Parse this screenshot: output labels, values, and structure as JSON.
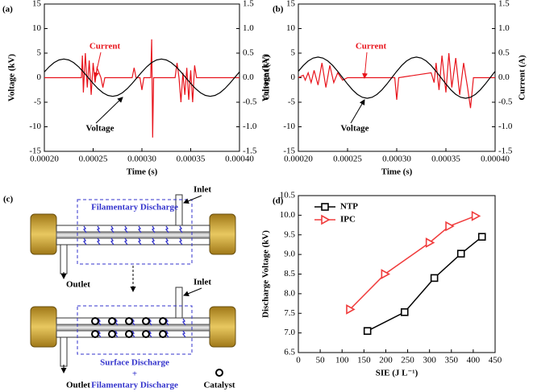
{
  "chart_data": [
    {
      "type": "line",
      "panel": "(a)",
      "xlabel": "Time (s)",
      "ylabel": "Voltage (kV)",
      "y2label": "Current (A)",
      "xlim": [
        0.0002,
        0.0004
      ],
      "xticks": [
        {
          "value": 0.0002,
          "label": "0.00020"
        },
        {
          "value": 0.00025,
          "label": "0.00025"
        },
        {
          "value": 0.0003,
          "label": "0.00030"
        },
        {
          "value": 0.00035,
          "label": "0.00035"
        },
        {
          "value": 0.0004,
          "label": "0.00040"
        }
      ],
      "ylim": [
        -15,
        15
      ],
      "yticks": [
        -15,
        -10,
        -5,
        0,
        5,
        10,
        15
      ],
      "y2lim": [
        -1.5,
        1.5
      ],
      "y2ticks": [
        -1.5,
        {
          "value": -1,
          "label": "-1.0"
        },
        -0.5,
        {
          "value": 0,
          "label": "0.0"
        },
        0.5,
        {
          "value": 1,
          "label": "1.0"
        },
        1.5
      ],
      "annotations": [
        "Current",
        "Voltage"
      ],
      "series": [
        {
          "name": "Current",
          "color": "#e8141c",
          "axis": "y2",
          "x": [
            0.0002,
            0.000238,
            0.000239,
            0.00024,
            0.000242,
            0.000244,
            0.000246,
            0.000248,
            0.00025,
            0.000252,
            0.000254,
            0.000258,
            0.00026,
            0.000262,
            0.00029,
            0.000292,
            0.000294,
            0.000298,
            0.0003,
            0.000302,
            0.000309,
            0.00031,
            0.000311,
            0.000312,
            0.000334,
            0.000336,
            0.000338,
            0.00034,
            0.000342,
            0.000344,
            0.000346,
            0.000348,
            0.00035,
            0.000352,
            0.000354,
            0.000356,
            0.0004
          ],
          "values": [
            0,
            0,
            0.45,
            -0.3,
            0.5,
            -0.2,
            0.35,
            -0.35,
            0.3,
            -0.1,
            0.2,
            0,
            -0.2,
            0,
            0,
            0.2,
            0,
            0,
            -0.25,
            0,
            0,
            0.78,
            -1.22,
            0,
            0,
            0.3,
            0,
            -0.5,
            0.1,
            -0.35,
            0.2,
            -0.45,
            0.15,
            -0.5,
            0.25,
            0,
            0
          ]
        },
        {
          "name": "Voltage",
          "color": "#000000",
          "x": [
            0.0002,
            0.000205,
            0.00021,
            0.000215,
            0.00022,
            0.000225,
            0.00023,
            0.000235,
            0.00024,
            0.000245,
            0.00025,
            0.000255,
            0.00026,
            0.000265,
            0.00027,
            0.000275,
            0.00028,
            0.000285,
            0.00029,
            0.000295,
            0.0003,
            0.000305,
            0.00031,
            0.000315,
            0.00032,
            0.000325,
            0.00033,
            0.000335,
            0.00034,
            0.000345,
            0.00035,
            0.000355,
            0.00036,
            0.000365,
            0.00037,
            0.000375,
            0.00038,
            0.000385,
            0.00039,
            0.000395,
            0.0004
          ],
          "values": [
            1.17,
            2.23,
            3.07,
            3.61,
            3.8,
            3.61,
            3.07,
            2.23,
            1.17,
            0,
            -1.17,
            -2.23,
            -3.07,
            -3.61,
            -3.8,
            -3.61,
            -3.07,
            -2.23,
            -1.17,
            0,
            1.17,
            2.23,
            3.07,
            3.61,
            3.8,
            3.61,
            3.07,
            2.23,
            1.17,
            0,
            -1.17,
            -2.23,
            -3.07,
            -3.61,
            -3.8,
            -3.61,
            -3.07,
            -2.23,
            -1.17,
            0,
            1.17
          ]
        }
      ]
    },
    {
      "type": "line",
      "panel": "(b)",
      "xlabel": "Time (s)",
      "ylabel": "Voltage (kV)",
      "y2label": "Current (A)",
      "xlim": [
        0.0002,
        0.0004
      ],
      "xticks": [
        {
          "value": 0.0002,
          "label": "0.00020"
        },
        {
          "value": 0.00025,
          "label": "0.00025"
        },
        {
          "value": 0.0003,
          "label": "0.00030"
        },
        {
          "value": 0.00035,
          "label": "0.00035"
        },
        {
          "value": 0.0004,
          "label": "0.00040"
        }
      ],
      "ylim": [
        -15,
        15
      ],
      "yticks": [
        -15,
        -10,
        -5,
        0,
        5,
        10,
        15
      ],
      "y2lim": [
        -1.5,
        1.5
      ],
      "y2ticks": [
        -1.5,
        {
          "value": -1,
          "label": "-1.0"
        },
        -0.5,
        {
          "value": 0,
          "label": "0.0"
        },
        0.5,
        {
          "value": 1,
          "label": "1.0"
        },
        1.5
      ],
      "annotations": [
        "Current",
        "Voltage"
      ],
      "series": [
        {
          "name": "Current",
          "color": "#e8141c",
          "axis": "y2",
          "x": [
            0.0002,
            0.000205,
            0.000207,
            0.00021,
            0.000213,
            0.000216,
            0.00022,
            0.000224,
            0.000228,
            0.000232,
            0.000236,
            0.00024,
            0.000245,
            0.00025,
            0.000298,
            0.0003,
            0.000302,
            0.000335,
            0.000338,
            0.00034,
            0.000343,
            0.000346,
            0.00035,
            0.000353,
            0.000356,
            0.00036,
            0.000364,
            0.000368,
            0.000372,
            0.000375,
            0.000378,
            0.0004
          ],
          "values": [
            0,
            0.05,
            -0.05,
            0.1,
            -0.1,
            0.15,
            -0.15,
            0.3,
            -0.2,
            0.25,
            -0.1,
            0.1,
            -0.05,
            0,
            0,
            -0.45,
            0,
            0.1,
            -0.1,
            0.3,
            -0.25,
            0.45,
            -0.3,
            0.5,
            -0.2,
            0.4,
            -0.35,
            0.3,
            -0.2,
            -0.62,
            0,
            0
          ]
        },
        {
          "name": "Voltage",
          "color": "#000000",
          "x": [
            0.0002,
            0.000205,
            0.00021,
            0.000215,
            0.00022,
            0.000225,
            0.00023,
            0.000235,
            0.00024,
            0.000245,
            0.00025,
            0.000255,
            0.00026,
            0.000265,
            0.00027,
            0.000275,
            0.00028,
            0.000285,
            0.00029,
            0.000295,
            0.0003,
            0.000305,
            0.00031,
            0.000315,
            0.00032,
            0.000325,
            0.00033,
            0.000335,
            0.00034,
            0.000345,
            0.00035,
            0.000355,
            0.00036,
            0.000365,
            0.00037,
            0.000375,
            0.00038,
            0.000385,
            0.00039,
            0.000395,
            0.0004
          ],
          "values": [
            1.3,
            2.47,
            3.4,
            3.99,
            4.2,
            3.99,
            3.4,
            2.47,
            1.3,
            0,
            -1.3,
            -2.47,
            -3.4,
            -3.99,
            -4.2,
            -3.99,
            -3.4,
            -2.47,
            -1.3,
            0,
            1.3,
            2.47,
            3.4,
            3.99,
            4.2,
            3.99,
            3.4,
            2.47,
            1.3,
            0,
            -1.3,
            -2.47,
            -3.4,
            -3.99,
            -4.2,
            -3.99,
            -3.4,
            -2.47,
            -1.3,
            0,
            1.3
          ]
        }
      ]
    },
    {
      "type": "line",
      "panel": "(d)",
      "xlabel": "SIE (J L⁻¹)",
      "ylabel": "Discharge Voltage (kV)",
      "xlim": [
        0,
        450
      ],
      "xticks": [
        0,
        50,
        100,
        150,
        200,
        250,
        300,
        350,
        400,
        450
      ],
      "ylim": [
        6.5,
        10.5
      ],
      "yticks": [
        6.5,
        {
          "value": 7,
          "label": "7.0"
        },
        7.5,
        {
          "value": 8,
          "label": "8.0"
        },
        8.5,
        {
          "value": 9,
          "label": "9.0"
        },
        9.5,
        {
          "value": 10,
          "label": "10.0"
        },
        10.5
      ],
      "legend": "upper left",
      "series": [
        {
          "name": "NTP",
          "color": "#000000",
          "marker": "square",
          "x": [
            158,
            243,
            311,
            372,
            420
          ],
          "values": [
            7.05,
            7.53,
            8.4,
            9.02,
            9.45
          ]
        },
        {
          "name": "IPC",
          "color": "#f03c3c",
          "marker": "triangle-right",
          "x": [
            118,
            198,
            300,
            345,
            405
          ],
          "values": [
            7.6,
            8.5,
            9.3,
            9.72,
            9.98
          ]
        }
      ]
    }
  ],
  "diagram": {
    "panel": "(c)",
    "top_label": "Filamentary Discharge",
    "inlet_top": "Inlet",
    "outlet_top": "Outlet",
    "inlet_bottom": "Inlet",
    "outlet_bottom": "Outlet",
    "bottom_label_1": "Surface Discharge",
    "bottom_label_2": "+",
    "bottom_label_3": "Filamentary Discharge",
    "catalyst": "Catalyst"
  }
}
